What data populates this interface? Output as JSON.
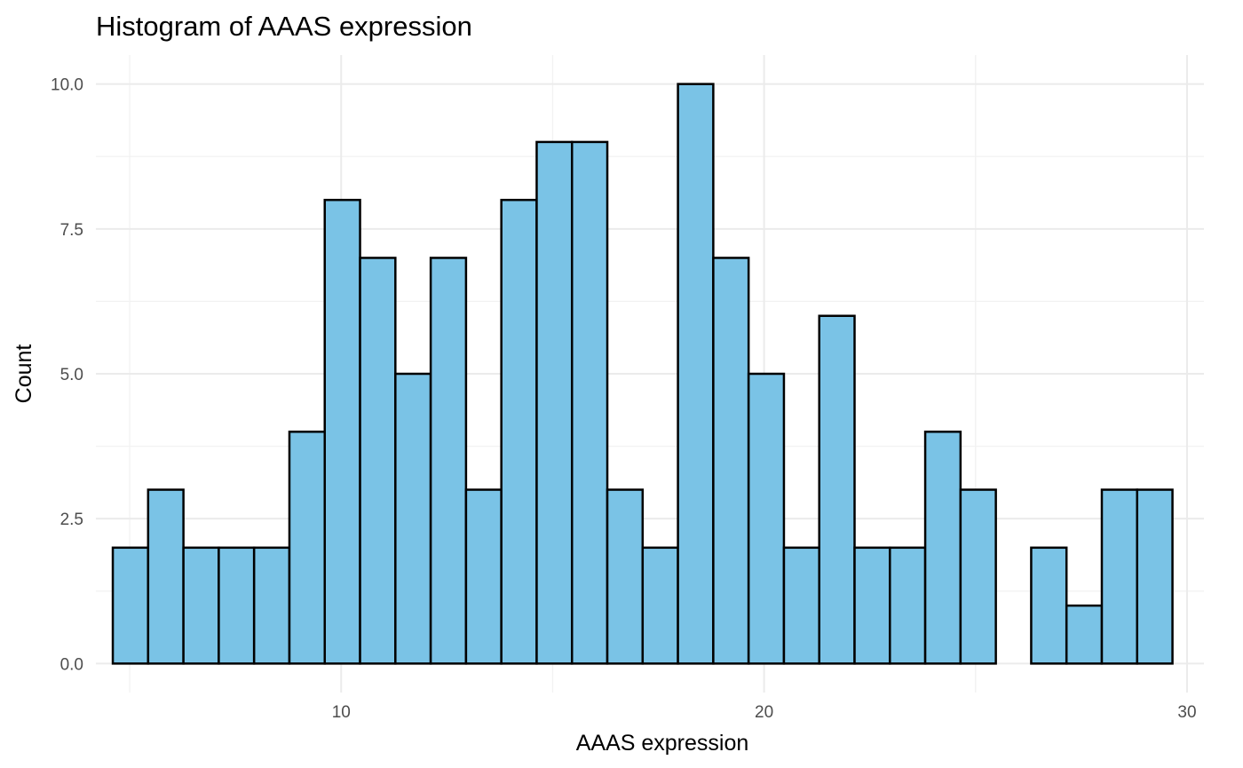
{
  "chart_data": {
    "type": "bar",
    "title": "Histogram of AAAS expression",
    "xlabel": "AAAS expression",
    "ylabel": "Count",
    "bin_start": 4.6,
    "bin_width": 0.8352,
    "counts": [
      2,
      3,
      2,
      2,
      2,
      4,
      8,
      7,
      5,
      7,
      3,
      8,
      9,
      9,
      3,
      2,
      10,
      7,
      5,
      2,
      6,
      2,
      2,
      4,
      3,
      0,
      2,
      1,
      3,
      3
    ],
    "xlim": [
      4.2,
      30.4
    ],
    "ylim": [
      -0.5,
      10.5
    ],
    "x_ticks": [
      10,
      20,
      30
    ],
    "x_tick_labels": [
      "10",
      "20",
      "30"
    ],
    "y_ticks": [
      0,
      2.5,
      5,
      7.5,
      10
    ],
    "y_tick_labels": [
      "0.0",
      "2.5",
      "5.0",
      "7.5",
      "10.0"
    ],
    "grid": true,
    "fill_color": "#7AC3E6",
    "edge_color": "#000000"
  }
}
